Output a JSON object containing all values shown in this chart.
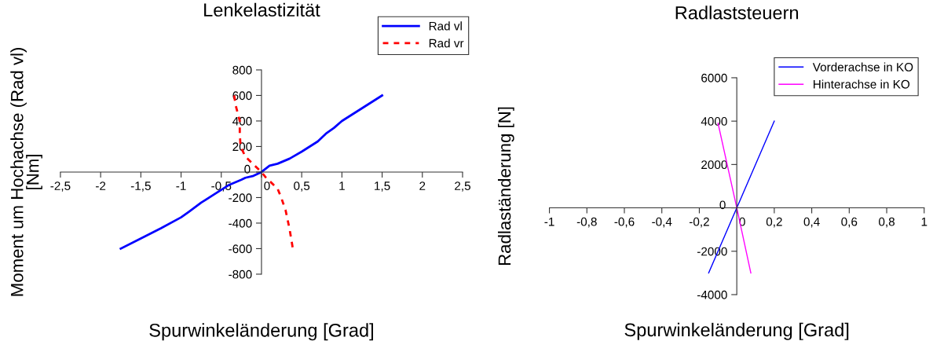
{
  "chart_data": [
    {
      "type": "line",
      "title": "Lenkelastizität",
      "xlabel": "Spurwinkeländerung [Grad]",
      "ylabel": "Moment um Hochachse (Rad vl)\n[Nm]",
      "legend": "top right",
      "grid": false,
      "xlim": [
        -2.5,
        2.5
      ],
      "xticks": [
        {
          "value": -2.5,
          "label": "-2,5"
        },
        -2,
        {
          "value": -1.5,
          "label": "-1,5"
        },
        -1,
        {
          "value": -0.5,
          "label": "-0,5"
        },
        0,
        {
          "value": 0.5,
          "label": "0,5"
        },
        1,
        {
          "value": 1.5,
          "label": "1,5"
        },
        2,
        {
          "value": 2.5,
          "label": "2,5"
        }
      ],
      "ylim": [
        -800,
        800
      ],
      "yticks": [
        -800,
        -600,
        -400,
        -200,
        0,
        200,
        400,
        600,
        800
      ],
      "series": [
        {
          "name": "Rad vl",
          "color": "#0000ff",
          "line_style": "solid",
          "x": [
            -1.75,
            -1.5,
            -1.25,
            -1.0,
            -0.9,
            -0.75,
            -0.6,
            -0.5,
            -0.4,
            -0.25,
            -0.2,
            -0.1,
            0,
            0.1,
            0.2,
            0.35,
            0.5,
            0.7,
            0.8,
            0.9,
            1.0,
            1.25,
            1.5
          ],
          "values": [
            -600,
            -520,
            -440,
            -355,
            -310,
            -240,
            -180,
            -140,
            -100,
            -60,
            -45,
            -30,
            0,
            50,
            65,
            105,
            160,
            240,
            300,
            345,
            400,
            500,
            600
          ]
        },
        {
          "name": "Rad vr",
          "color": "#ff0000",
          "line_style": "dashed",
          "x": [
            -0.34,
            -0.32,
            -0.27,
            -0.27,
            -0.26,
            -0.2,
            -0.1,
            0,
            0.05,
            0.15,
            0.2,
            0.245,
            0.3,
            0.35,
            0.39
          ],
          "values": [
            600,
            520,
            400,
            300,
            200,
            120,
            60,
            0,
            -40,
            -100,
            -130,
            -200,
            -300,
            -450,
            -600
          ]
        }
      ]
    },
    {
      "type": "line",
      "title": "Radlaststeuern",
      "xlabel": "Spurwinkeländerung [Grad]",
      "ylabel": "Radlaständerung [N]",
      "legend": "top right",
      "grid": false,
      "xlim": [
        -1,
        1
      ],
      "xticks": [
        -1,
        {
          "value": -0.8,
          "label": "-0,8"
        },
        {
          "value": -0.6,
          "label": "-0,6"
        },
        {
          "value": -0.4,
          "label": "-0,4"
        },
        {
          "value": -0.2,
          "label": "-0,2"
        },
        0,
        {
          "value": 0.2,
          "label": "0,2"
        },
        {
          "value": 0.4,
          "label": "0,4"
        },
        {
          "value": 0.6,
          "label": "0,6"
        },
        {
          "value": 0.8,
          "label": "0,8"
        },
        1
      ],
      "ylim": [
        -4000,
        6000
      ],
      "yticks": [
        -4000,
        -2000,
        0,
        2000,
        4000,
        6000
      ],
      "series": [
        {
          "name": "Vorderachse in KO",
          "color": "#0000ff",
          "line_style": "solid",
          "x": [
            -0.15,
            0,
            0.2
          ],
          "values": [
            -3000,
            0,
            4000
          ]
        },
        {
          "name": "Hinterachse in KO",
          "color": "#ff00ff",
          "line_style": "solid",
          "x": [
            -0.1,
            0,
            0.075
          ],
          "values": [
            3900,
            0,
            -3000
          ]
        }
      ]
    }
  ]
}
